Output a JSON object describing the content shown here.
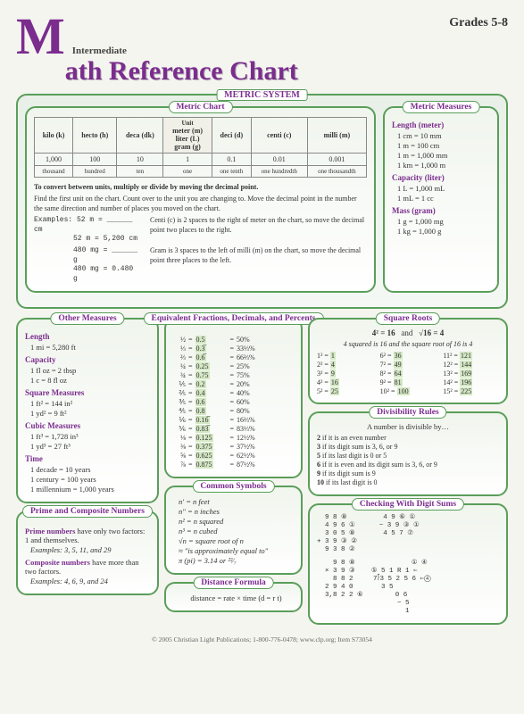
{
  "header": {
    "intermediate": "Intermediate",
    "bigM": "M",
    "title": "ath Reference Chart",
    "grades": "Grades 5-8"
  },
  "metricSystem": {
    "label": "METRIC SYSTEM"
  },
  "metricChart": {
    "title": "Metric Chart",
    "unitLabel": "Unit",
    "cols": [
      {
        "name": "kilo (k)",
        "val": "1,000",
        "word": "thousand"
      },
      {
        "name": "hecto (h)",
        "val": "100",
        "word": "hundred"
      },
      {
        "name": "deca (dk)",
        "val": "10",
        "word": "ten"
      },
      {
        "name": "meter (m)\nliter (L)\ngram (g)",
        "val": "1",
        "word": "one"
      },
      {
        "name": "deci (d)",
        "val": "0.1",
        "word": "one tenth"
      },
      {
        "name": "centi (c)",
        "val": "0.01",
        "word": "one hundredth"
      },
      {
        "name": "milli (m)",
        "val": "0.001",
        "word": "one thousandth"
      }
    ],
    "convert1": "To convert between units, multiply or divide by moving the decimal point.",
    "convert2": "Find the first unit on the chart. Count over to the unit you are changing to. Move the decimal point in the number the same direction and number of places you moved on the chart.",
    "ex1a": "Examples: 52 m = ______ cm",
    "ex1b": "52 m = 5,200 cm",
    "ex1txt": "Centi (c) is 2 spaces to the right of meter on the chart, so move the decimal point two places to the right.",
    "ex2a": "480 mg = ______ g",
    "ex2b": "480 mg = 0.480 g",
    "ex2txt": "Gram is 3 spaces to the left of milli (m) on the chart, so move the decimal point three places to the left."
  },
  "metricMeasures": {
    "title": "Metric Measures",
    "length": {
      "h": "Length (meter)",
      "items": [
        "1 cm = 10 mm",
        "1 m = 100 cm",
        "1 m = 1,000 mm",
        "1 km = 1,000 m"
      ]
    },
    "capacity": {
      "h": "Capacity (liter)",
      "items": [
        "1 L = 1,000 mL",
        "1 mL = 1 cc"
      ]
    },
    "mass": {
      "h": "Mass (gram)",
      "items": [
        "1 g = 1,000 mg",
        "1 kg = 1,000 g"
      ]
    }
  },
  "otherMeasures": {
    "title": "Other Measures",
    "sections": [
      {
        "h": "Length",
        "items": [
          "1 mi = 5,280 ft"
        ]
      },
      {
        "h": "Capacity",
        "items": [
          "1 fl oz = 2 tbsp",
          "1 c = 8 fl oz"
        ]
      },
      {
        "h": "Square Measures",
        "items": [
          "1 ft² = 144 in²",
          "1 yd² = 9 ft²"
        ]
      },
      {
        "h": "Cubic Measures",
        "items": [
          "1 ft³ = 1,728 in³",
          "1 yd³ = 27 ft³"
        ]
      },
      {
        "h": "Time",
        "items": [
          "1 decade = 10 years",
          "1 century = 100 years",
          "1 millennium = 1,000 years"
        ]
      }
    ]
  },
  "primeComposite": {
    "title": "Prime and Composite Numbers",
    "prime": "Prime numbers have only two factors: 1 and themselves.",
    "primeEx": "Examples: 3, 5, 11, and 29",
    "composite": "Composite numbers have more than two factors.",
    "compEx": "Examples: 4, 6, 9, and 24"
  },
  "fractions": {
    "title": "Equivalent Fractions, Decimals, and Percents",
    "rows": [
      {
        "f": "½",
        "d": "0.5",
        "p": "50%"
      },
      {
        "f": "⅓",
        "d": "0.3̅",
        "p": "33⅓%"
      },
      {
        "f": "⅔",
        "d": "0.6̅",
        "p": "66⅔%"
      },
      {
        "f": "¼",
        "d": "0.25",
        "p": "25%"
      },
      {
        "f": "¾",
        "d": "0.75",
        "p": "75%"
      },
      {
        "f": "⅕",
        "d": "0.2",
        "p": "20%"
      },
      {
        "f": "⅖",
        "d": "0.4",
        "p": "40%"
      },
      {
        "f": "⅗",
        "d": "0.6",
        "p": "60%"
      },
      {
        "f": "⅘",
        "d": "0.8",
        "p": "80%"
      },
      {
        "f": "⅙",
        "d": "0.16̅",
        "p": "16⅔%"
      },
      {
        "f": "⅚",
        "d": "0.83̅",
        "p": "83⅓%"
      },
      {
        "f": "⅛",
        "d": "0.125",
        "p": "12½%"
      },
      {
        "f": "⅜",
        "d": "0.375",
        "p": "37½%"
      },
      {
        "f": "⅝",
        "d": "0.625",
        "p": "62½%"
      },
      {
        "f": "⅞",
        "d": "0.875",
        "p": "87½%"
      }
    ]
  },
  "commonSymbols": {
    "title": "Common Symbols",
    "items": [
      "n' = n feet",
      "n\" = n inches",
      "n² = n squared",
      "n³ = n cubed",
      "√n = square root of n",
      "≈  \"is approximately equal to\"",
      "π (pi) = 3.14 or ²²⁄₇"
    ]
  },
  "distanceFormula": {
    "title": "Distance Formula",
    "text": "distance = rate × time (d = r t)"
  },
  "squareRoots": {
    "title": "Square Roots",
    "hdr1": "4² = 16",
    "hdr2": "√16 = 4",
    "and": "and",
    "sub": "4 squared is 16 and the square root of 16 is 4",
    "items": [
      "1² = 1",
      "6² = 36",
      "11² = 121",
      "2² = 4",
      "7² = 49",
      "12² = 144",
      "3² = 9",
      "8² = 64",
      "13² = 169",
      "4² = 16",
      "9² = 81",
      "14² = 196",
      "5² = 25",
      "10² = 100",
      "15² = 225"
    ]
  },
  "divisibility": {
    "title": "Divisibility Rules",
    "intro": "A number is divisible by…",
    "rules": [
      {
        "n": "2",
        "t": "if it is an even number"
      },
      {
        "n": "3",
        "t": "if its digit sum is 3, 6, or 9"
      },
      {
        "n": "5",
        "t": "if its last digit is 0 or 5"
      },
      {
        "n": "6",
        "t": "if it is even and its digit sum is 3, 6, or 9"
      },
      {
        "n": "9",
        "t": "if its digit sum is 9"
      },
      {
        "n": "10",
        "t": "if its last digit is 0"
      }
    ]
  },
  "checking": {
    "title": "Checking With Digit Sums",
    "block1": "  9 8 ⑧         4 9 ⑥ ①\n  4 9 6 ①      − 3 9 ③ ①\n  3 0 5 ⑧       4 5 7 ⑦\n+ 3 9 ③ ②\n  9 3 8 ②",
    "block2": "    9 8 ⑧              ① ④\n  × 3 9 ③    ⑤ 5 1 R 1 ⇐\n    8 8 2     7⟌3 5 2 5 6 ⇐④\n  2 9 4 0       3 5\n  3,8 2 2 ⑥        0 6\n                    − 5\n                      1"
  },
  "footer": "© 2005 Christian Light Publications; 1-800-776-0478; www.clp.org; Item S73054"
}
